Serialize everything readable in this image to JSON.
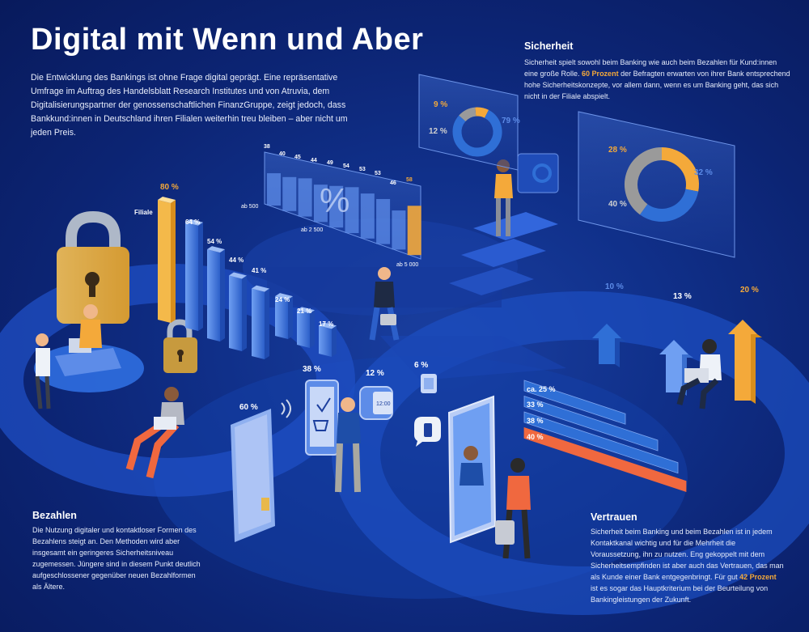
{
  "title": "Digital mit Wenn und Aber",
  "intro": "Die Entwicklung des Bankings ist ohne Frage digital geprägt. Eine repräsentative Umfrage im Auftrag des Handelsblatt Research Institutes und von Atruvia, dem Digitalisierungspartner der genossenschaftlichen FinanzGruppe, zeigt jedoch, dass Bankkund:innen in Deutschland ihren Filialen weiterhin treu bleiben – aber nicht um jeden Preis.",
  "sicherheit": {
    "heading": "Sicherheit",
    "text_a": "Sicherheit spielt sowohl beim Banking wie auch beim Bezahlen für Kund:innen eine große Rolle. ",
    "highlight": "60 Prozent",
    "text_b": " der Befragten erwarten von ihrer Bank entsprechend hohe Sicherheitskonzepte, vor allem dann, wenn es um Banking geht, das sich nicht in der Filiale abspielt."
  },
  "bezahlen": {
    "heading": "Bezahlen",
    "text": "Die Nutzung digitaler und kontaktloser Formen des Bezahlens steigt an. Den Methoden wird aber insgesamt ein geringeres Sicherheitsniveau zugemessen. Jüngere sind in diesem Punkt deutlich aufgeschlossener gegenüber neuen Bezahlformen als Ältere."
  },
  "vertrauen": {
    "heading": "Vertrauen",
    "text_a": "Sicherheit beim Banking und beim Bezahlen ist in jedem Kontaktkanal wichtig und für die Mehrheit die Voraussetzung, ihn zu nutzen. Eng gekoppelt mit dem Sicherheitsempfinden ist aber auch das Vertrauen, das man als Kunde einer Bank entgegenbringt. Für gut ",
    "highlight": "42 Prozent",
    "text_b": " ist es sogar das Hauptkriterium bei der Beurteilung von Bankingleistungen der Zukunft."
  },
  "colors": {
    "orange": "#f4a93a",
    "blue": "#2f6fd6",
    "gray": "#9a9a9a",
    "salmon": "#f0683f"
  },
  "chart_data": [
    {
      "type": "bar",
      "categories": [
        "Filiale",
        "",
        "",
        "",
        "",
        "",
        "",
        ""
      ],
      "values": [
        80,
        64,
        54,
        44,
        41,
        24,
        21,
        17
      ],
      "labels": [
        "80 %",
        "64 %",
        "54 %",
        "44 %",
        "41 %",
        "24 %",
        "21 %",
        "17 %"
      ],
      "category_label": "Filiale"
    },
    {
      "type": "area",
      "values": [
        38,
        40,
        45,
        44,
        49,
        54,
        53,
        53,
        46,
        58
      ],
      "axis_labels": [
        "ab 500",
        "ab 2 500",
        "ab 5 000"
      ],
      "symbol": "%"
    },
    {
      "type": "pie",
      "labels": [
        "9 %",
        "79 %",
        "12 %"
      ],
      "values": [
        9,
        79,
        12
      ],
      "colors": [
        "#f4a93a",
        "#2f6fd6",
        "#9a9a9a"
      ]
    },
    {
      "type": "pie",
      "labels": [
        "28 %",
        "32 %",
        "40 %"
      ],
      "values": [
        28,
        32,
        40
      ],
      "colors": [
        "#f4a93a",
        "#2f6fd6",
        "#9a9a9a"
      ]
    },
    {
      "type": "bar",
      "orientation": "horizontal",
      "labels": [
        "ca. 25 %",
        "33 %",
        "38 %",
        "40 %"
      ],
      "values": [
        25,
        33,
        38,
        40
      ]
    },
    {
      "type": "bar",
      "labels": [
        "10 %",
        "13 %",
        "20 %"
      ],
      "values": [
        10,
        13,
        20
      ]
    }
  ],
  "payment_labels": [
    "60 %",
    "38 %",
    "12 %",
    "6 %"
  ],
  "watch_text": "12:00"
}
